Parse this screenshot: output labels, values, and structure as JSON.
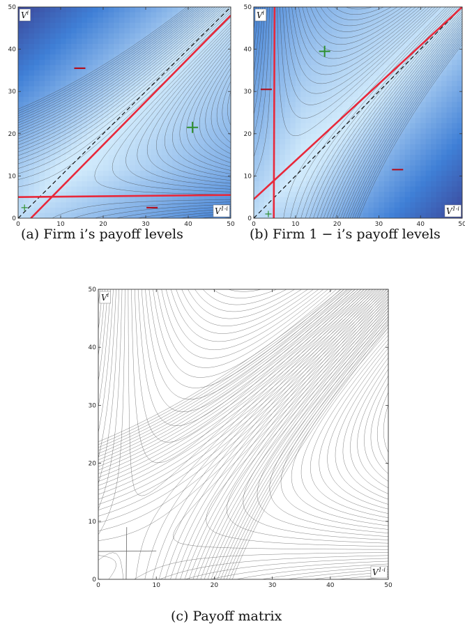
{
  "figure": {
    "captions": {
      "a": "(a)  Firm i’s payoff levels",
      "b": "(b)  Firm 1 − i’s payoff levels",
      "c": "(c)  Payoff matrix"
    }
  },
  "chart_data": [
    {
      "id": "a",
      "type": "contour",
      "xlim": [
        0,
        50
      ],
      "ylim": [
        0,
        50
      ],
      "xticks": [
        0,
        10,
        20,
        30,
        40,
        50
      ],
      "yticks": [
        0,
        10,
        20,
        30,
        40,
        50
      ],
      "xlabel": "V^{1-i}",
      "ylabel": "V^i",
      "fill": "blue gradient, lighter at high payoff",
      "colors": {
        "low": "#3a1f6e",
        "mid": "#3f7fd6",
        "high": "#cfe9fb",
        "contour": "#3a3a3a",
        "curve": "#e8283a",
        "marker": "#2f8f2f"
      },
      "red_lines": [
        {
          "from": [
            3,
            0
          ],
          "to": [
            50,
            48
          ]
        },
        {
          "from": [
            0,
            5
          ],
          "to": [
            50,
            5.5
          ]
        }
      ],
      "dashed_diagonal": {
        "from": [
          0,
          0
        ],
        "to": [
          50,
          50
        ]
      },
      "plus_markers": [
        {
          "x": 41,
          "y": 21.5,
          "size": "large"
        },
        {
          "x": 1.5,
          "y": 2.5,
          "size": "small"
        }
      ],
      "minus_markers": [
        {
          "x": 14.5,
          "y": 35.5
        },
        {
          "x": 31.5,
          "y": 2.5
        }
      ]
    },
    {
      "id": "b",
      "type": "contour",
      "xlim": [
        0,
        50
      ],
      "ylim": [
        0,
        50
      ],
      "xticks": [
        0,
        10,
        20,
        30,
        40,
        50
      ],
      "yticks": [
        0,
        10,
        20,
        30,
        40,
        50
      ],
      "xlabel": "V^{1-i}",
      "ylabel": "V^i",
      "fill": "blue gradient, lighter at high payoff",
      "colors": {
        "low": "#3a1f6e",
        "mid": "#3f7fd6",
        "high": "#cfe9fb",
        "contour": "#3a3a3a",
        "curve": "#e8283a",
        "marker": "#2f8f2f"
      },
      "red_lines": [
        {
          "from": [
            4.8,
            0
          ],
          "to": [
            5,
            50
          ]
        },
        {
          "from": [
            0,
            4.5
          ],
          "to": [
            50,
            50
          ]
        }
      ],
      "dashed_diagonal": {
        "from": [
          0,
          0
        ],
        "to": [
          50,
          50
        ]
      },
      "plus_markers": [
        {
          "x": 17,
          "y": 39.5,
          "size": "large"
        },
        {
          "x": 3.5,
          "y": 1,
          "size": "small"
        }
      ],
      "minus_markers": [
        {
          "x": 3,
          "y": 30.5
        },
        {
          "x": 34.5,
          "y": 11.5
        }
      ]
    },
    {
      "id": "c",
      "type": "contour",
      "xlim": [
        0,
        50
      ],
      "ylim": [
        0,
        50
      ],
      "xticks": [
        0,
        10,
        20,
        30,
        40,
        50
      ],
      "yticks": [
        0,
        10,
        20,
        30,
        40,
        50
      ],
      "xlabel": "V^{1-i}",
      "ylabel": "V^i",
      "fill": "none",
      "colors": {
        "contour": "#555555"
      },
      "grey_lines": [
        {
          "from": [
            4.8,
            0
          ],
          "to": [
            4.9,
            9
          ]
        },
        {
          "from": [
            0,
            4.8
          ],
          "to": [
            10,
            4.9
          ]
        }
      ]
    }
  ]
}
